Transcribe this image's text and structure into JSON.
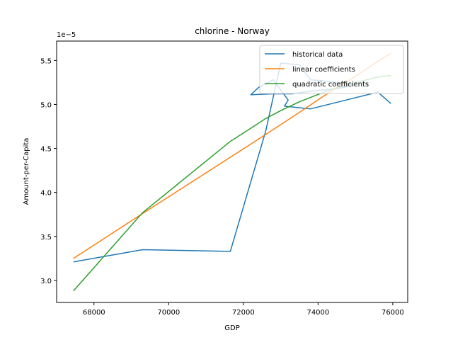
{
  "chart_data": {
    "type": "line",
    "title": "chlorine - Norway",
    "xlabel": "GDP",
    "ylabel": "Amount-per-Capita",
    "y_offset_label": "1e−5",
    "xlim": [
      67000,
      76400
    ],
    "ylim": [
      2.75,
      5.72
    ],
    "xticks": [
      68000,
      70000,
      72000,
      74000,
      76000
    ],
    "yticks": [
      3.0,
      3.5,
      4.0,
      4.5,
      5.0,
      5.5
    ],
    "xtick_labels": [
      "68000",
      "70000",
      "72000",
      "74000",
      "76000"
    ],
    "ytick_labels": [
      "3.0",
      "3.5",
      "4.0",
      "4.5",
      "5.0",
      "5.5"
    ],
    "legend_position": "top-right",
    "grid": false,
    "series": [
      {
        "name": "historical data",
        "color": "#1f77b4",
        "points": [
          [
            67450,
            3.21
          ],
          [
            69300,
            3.35
          ],
          [
            71650,
            3.33
          ],
          [
            72600,
            4.7
          ],
          [
            73000,
            5.47
          ],
          [
            73500,
            5.45
          ],
          [
            73800,
            5.28
          ],
          [
            74100,
            5.27
          ],
          [
            75000,
            5.22
          ],
          [
            74500,
            5.18
          ],
          [
            73800,
            5.15
          ],
          [
            73300,
            5.12
          ],
          [
            72800,
            5.12
          ],
          [
            72200,
            5.11
          ],
          [
            72400,
            5.19
          ],
          [
            72800,
            5.28
          ],
          [
            73200,
            5.05
          ],
          [
            73100,
            4.98
          ],
          [
            73800,
            4.95
          ],
          [
            75600,
            5.14
          ],
          [
            75950,
            5.01
          ]
        ]
      },
      {
        "name": "linear coefficients",
        "color": "#ff7f0e",
        "points": [
          [
            67450,
            3.25
          ],
          [
            69300,
            3.76
          ],
          [
            71650,
            4.4
          ],
          [
            72200,
            4.55
          ],
          [
            72600,
            4.66
          ],
          [
            73000,
            4.77
          ],
          [
            73500,
            4.91
          ],
          [
            74100,
            5.08
          ],
          [
            74500,
            5.19
          ],
          [
            75000,
            5.32
          ],
          [
            75600,
            5.49
          ],
          [
            75950,
            5.58
          ]
        ]
      },
      {
        "name": "quadratic coefficients",
        "color": "#2ca02c",
        "points": [
          [
            67450,
            2.88
          ],
          [
            69300,
            3.77
          ],
          [
            71650,
            4.58
          ],
          [
            72200,
            4.73
          ],
          [
            72600,
            4.84
          ],
          [
            73000,
            4.93
          ],
          [
            73500,
            5.03
          ],
          [
            74100,
            5.13
          ],
          [
            74500,
            5.19
          ],
          [
            75000,
            5.25
          ],
          [
            75600,
            5.31
          ],
          [
            75950,
            5.33
          ]
        ]
      }
    ]
  }
}
